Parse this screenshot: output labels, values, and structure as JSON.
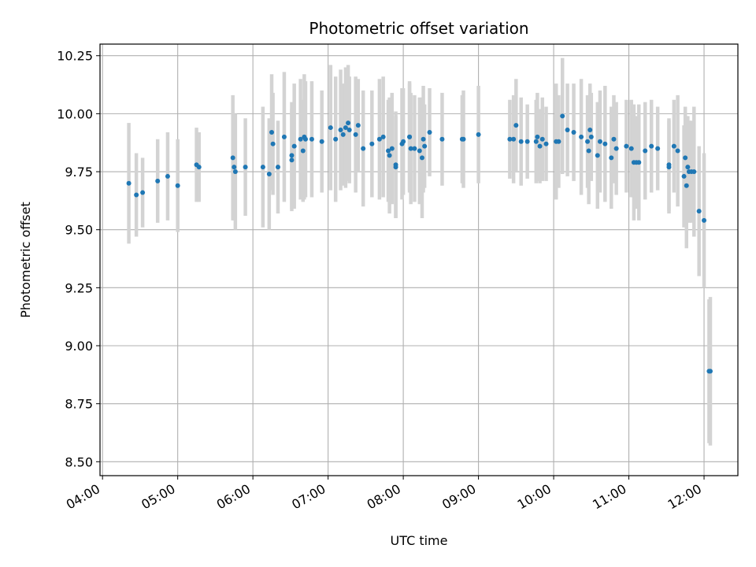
{
  "chart_data": {
    "type": "scatter",
    "title": "Photometric offset variation",
    "xlabel": "UTC time",
    "ylabel": "Photometric offset",
    "xlim": [
      "03:58",
      "12:27"
    ],
    "ylim": [
      8.44,
      10.3
    ],
    "x_ticks": [
      "04:00",
      "05:00",
      "06:00",
      "07:00",
      "08:00",
      "09:00",
      "10:00",
      "11:00",
      "12:00"
    ],
    "y_ticks": [
      "8.50",
      "8.75",
      "9.00",
      "9.25",
      "9.50",
      "9.75",
      "10.00",
      "10.25"
    ],
    "grid": true,
    "colors": {
      "points": "#1f77b4",
      "error_bars": "#d3d3d3",
      "grid": "#b0b0b0"
    },
    "series": [
      {
        "x": [
          "04:21",
          "04:27",
          "04:32",
          "04:44",
          "04:52",
          "05:00",
          "05:15",
          "05:17",
          "05:44",
          "05:45",
          "05:46",
          "05:54",
          "06:08",
          "06:13",
          "06:15",
          "06:16",
          "06:20",
          "06:25",
          "06:31",
          "06:31",
          "06:33",
          "06:38",
          "06:40",
          "06:41",
          "06:42",
          "06:47",
          "06:55",
          "07:02",
          "07:06",
          "07:10",
          "07:12",
          "07:14",
          "07:16",
          "07:17",
          "07:22",
          "07:24",
          "07:28",
          "07:35",
          "07:41",
          "07:44",
          "07:48",
          "07:49",
          "07:51",
          "07:54",
          "07:54",
          "07:59",
          "08:00",
          "08:05",
          "08:05",
          "08:06",
          "08:09",
          "08:13",
          "08:15",
          "08:16",
          "08:17",
          "08:21",
          "08:31",
          "08:47",
          "08:48",
          "09:00",
          "09:25",
          "09:28",
          "09:30",
          "09:34",
          "09:39",
          "09:46",
          "09:47",
          "09:49",
          "09:51",
          "09:54",
          "10:02",
          "10:04",
          "10:07",
          "10:11",
          "10:16",
          "10:22",
          "10:27",
          "10:28",
          "10:29",
          "10:30",
          "10:35",
          "10:37",
          "10:41",
          "10:46",
          "10:48",
          "10:50",
          "10:58",
          "11:02",
          "11:04",
          "11:06",
          "11:08",
          "11:13",
          "11:18",
          "11:23",
          "11:32",
          "11:32",
          "11:36",
          "11:39",
          "11:44",
          "11:45",
          "11:46",
          "11:47",
          "11:48",
          "11:50",
          "11:52",
          "11:56",
          "12:00",
          "12:04",
          "12:05"
        ],
        "y": [
          9.7,
          9.65,
          9.66,
          9.71,
          9.73,
          9.69,
          9.78,
          9.77,
          9.81,
          9.77,
          9.75,
          9.77,
          9.77,
          9.74,
          9.92,
          9.87,
          9.77,
          9.9,
          9.82,
          9.8,
          9.86,
          9.89,
          9.84,
          9.9,
          9.89,
          9.89,
          9.88,
          9.94,
          9.89,
          9.93,
          9.91,
          9.94,
          9.96,
          9.93,
          9.91,
          9.95,
          9.85,
          9.87,
          9.89,
          9.9,
          9.84,
          9.82,
          9.85,
          9.78,
          9.77,
          9.87,
          9.88,
          9.9,
          9.9,
          9.85,
          9.85,
          9.84,
          9.81,
          9.89,
          9.86,
          9.92,
          9.89,
          9.89,
          9.89,
          9.91,
          9.89,
          9.89,
          9.95,
          9.88,
          9.88,
          9.88,
          9.9,
          9.86,
          9.89,
          9.87,
          9.88,
          9.88,
          9.99,
          9.93,
          9.92,
          9.9,
          9.88,
          9.84,
          9.93,
          9.9,
          9.82,
          9.88,
          9.87,
          9.81,
          9.89,
          9.85,
          9.86,
          9.85,
          9.79,
          9.79,
          9.79,
          9.84,
          9.86,
          9.85,
          9.77,
          9.78,
          9.86,
          9.84,
          9.73,
          9.81,
          9.69,
          9.77,
          9.75,
          9.75,
          9.75,
          9.58,
          9.54,
          8.89,
          8.89
        ],
        "err": [
          0.26,
          0.18,
          0.15,
          0.18,
          0.19,
          0.2,
          0.16,
          0.15,
          0.27,
          0.23,
          0.25,
          0.21,
          0.26,
          0.24,
          0.25,
          0.22,
          0.2,
          0.28,
          0.23,
          0.22,
          0.27,
          0.26,
          0.22,
          0.27,
          0.25,
          0.25,
          0.22,
          0.27,
          0.27,
          0.26,
          0.22,
          0.26,
          0.25,
          0.23,
          0.25,
          0.2,
          0.25,
          0.23,
          0.26,
          0.26,
          0.22,
          0.25,
          0.24,
          0.23,
          0.22,
          0.24,
          0.23,
          0.24,
          0.23,
          0.24,
          0.23,
          0.23,
          0.26,
          0.23,
          0.18,
          0.19,
          0.2,
          0.19,
          0.21,
          0.21,
          0.17,
          0.19,
          0.2,
          0.19,
          0.16,
          0.18,
          0.19,
          0.16,
          0.18,
          0.16,
          0.25,
          0.2,
          0.25,
          0.2,
          0.21,
          0.25,
          0.2,
          0.23,
          0.2,
          0.19,
          0.23,
          0.22,
          0.25,
          0.22,
          0.19,
          0.2,
          0.2,
          0.21,
          0.25,
          0.2,
          0.25,
          0.21,
          0.2,
          0.18,
          0.2,
          0.2,
          0.2,
          0.24,
          0.22,
          0.22,
          0.27,
          0.22,
          0.22,
          0.22,
          0.28,
          0.28,
          0.29,
          0.31,
          0.32
        ]
      }
    ]
  }
}
